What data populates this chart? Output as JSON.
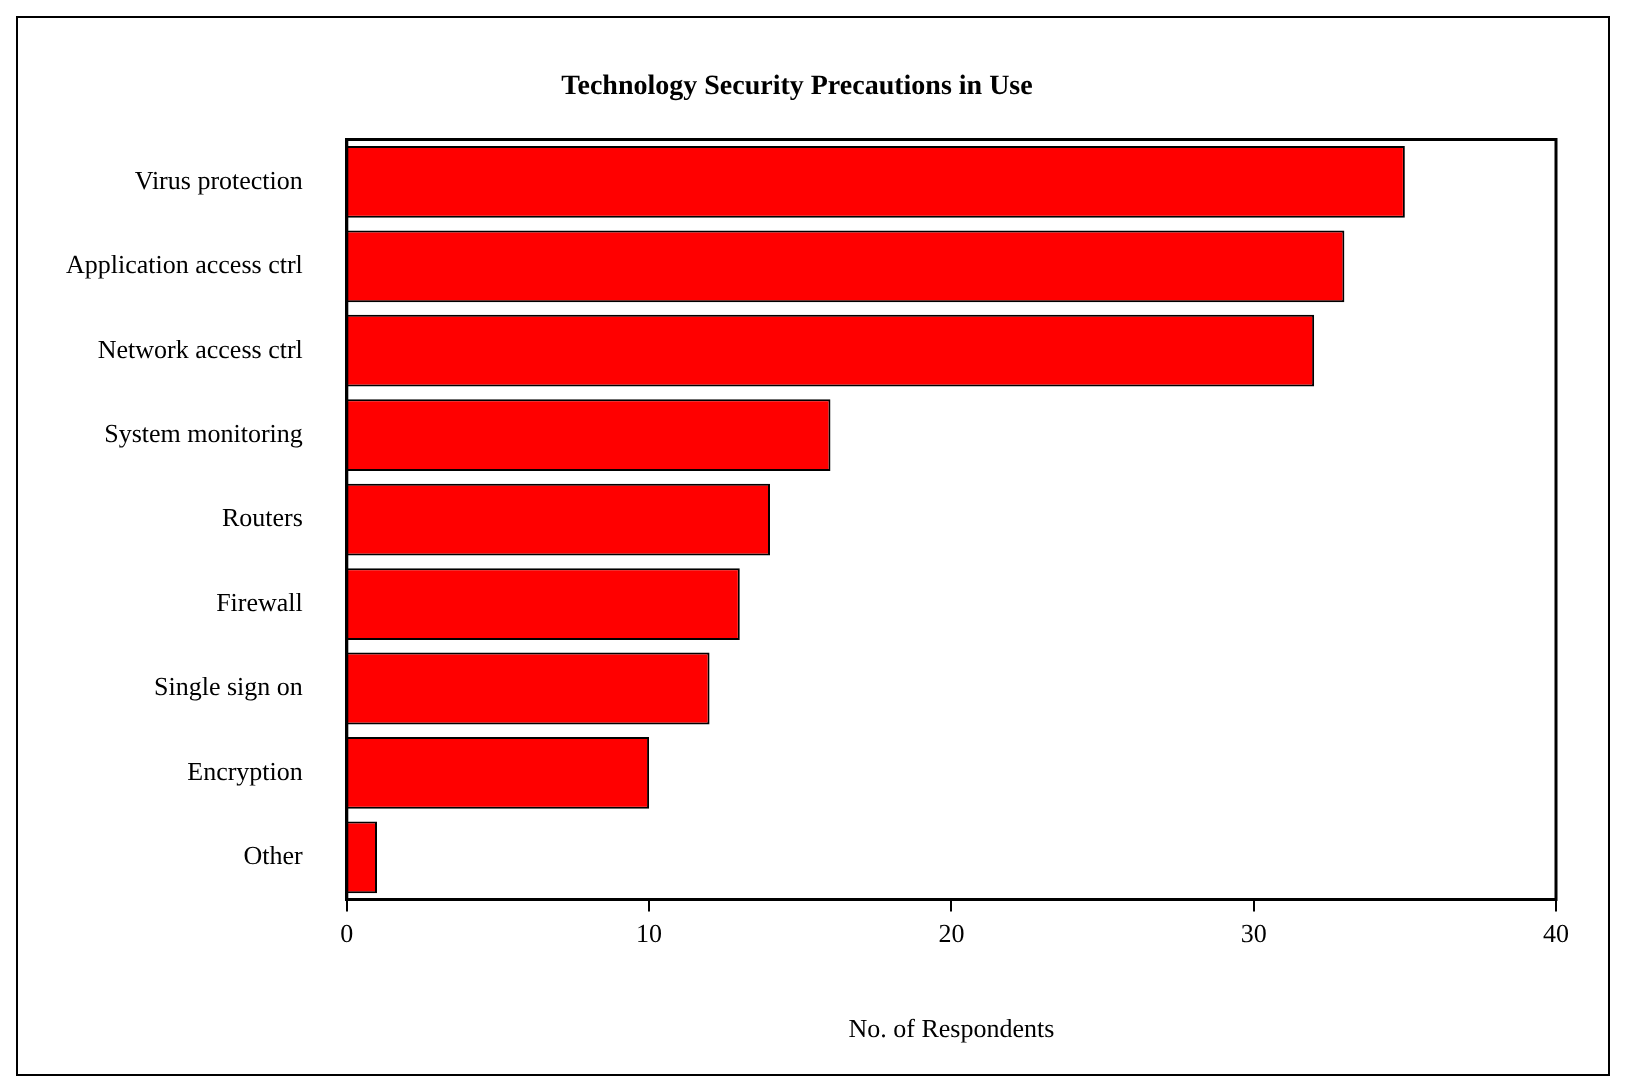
{
  "chart_data": {
    "type": "bar",
    "orientation": "horizontal",
    "title": "Technology Security Precautions in Use",
    "xlabel": "No. of Respondents",
    "categories": [
      "Virus protection",
      "Application access ctrl",
      "Network access ctrl",
      "System monitoring",
      "Routers",
      "Firewall",
      "Single sign on",
      "Encryption",
      "Other"
    ],
    "values": [
      35,
      33,
      32,
      16,
      14,
      13,
      12,
      10,
      1
    ],
    "color": "#ff0000",
    "xlim": [
      0,
      40
    ],
    "xticks": [
      0,
      10,
      20,
      30,
      40
    ],
    "grid": false,
    "legend": false
  }
}
